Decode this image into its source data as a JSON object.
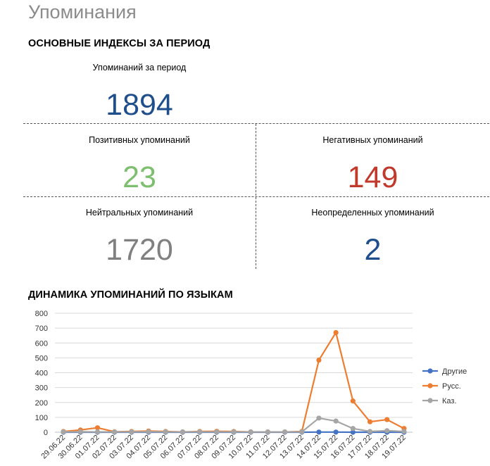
{
  "page": {
    "title": "Упоминания"
  },
  "indices": {
    "heading": "ОСНОВНЫЕ ИНДЕКСЫ ЗА ПЕРИОД",
    "total": {
      "label": "Упоминаний за период",
      "value": "1894",
      "color": "#1f4e8c"
    },
    "positive": {
      "label": "Позитивных упоминаний",
      "value": "23",
      "color": "#7dbf6e"
    },
    "negative": {
      "label": "Негативных упоминаний",
      "value": "149",
      "color": "#c0392b"
    },
    "neutral": {
      "label": "Нейтральных упоминаний",
      "value": "1720",
      "color": "#808080"
    },
    "undefined": {
      "label": "Неопределенных упоминаний",
      "value": "2",
      "color": "#1f4e8c"
    }
  },
  "dynamics": {
    "heading": "ДИНАМИКА УПОМИНАНИЙ ПО ЯЗЫКАМ"
  },
  "chart_data": {
    "type": "line",
    "title": "",
    "xlabel": "",
    "ylabel": "",
    "ylim": [
      0,
      800
    ],
    "yticks": [
      0,
      100,
      200,
      300,
      400,
      500,
      600,
      700,
      800
    ],
    "grid": true,
    "legend_position": "right",
    "categories": [
      "29.06.22",
      "30.06.22",
      "01.07.22",
      "02.07.22",
      "03.07.22",
      "04.07.22",
      "05.07.22",
      "06.07.22",
      "07.07.22",
      "08.07.22",
      "09.07.22",
      "10.07.22",
      "11.07.22",
      "12.07.22",
      "13.07.22",
      "14.07.22",
      "15.07.22",
      "16.07.22",
      "17.07.22",
      "18.07.22",
      "19.07.22"
    ],
    "series": [
      {
        "name": "Другие",
        "color": "#4472c4",
        "values": [
          0,
          0,
          0,
          0,
          0,
          0,
          0,
          0,
          0,
          0,
          0,
          0,
          0,
          0,
          0,
          1,
          1,
          0,
          0,
          0,
          0
        ]
      },
      {
        "name": "Русс.",
        "color": "#ed7d31",
        "values": [
          5,
          15,
          30,
          3,
          5,
          8,
          5,
          2,
          5,
          6,
          5,
          2,
          2,
          2,
          5,
          485,
          670,
          210,
          70,
          85,
          25
        ]
      },
      {
        "name": "Каз.",
        "color": "#a5a5a5",
        "values": [
          2,
          3,
          2,
          2,
          2,
          3,
          2,
          2,
          2,
          2,
          2,
          2,
          2,
          2,
          2,
          95,
          75,
          25,
          5,
          10,
          5
        ]
      }
    ]
  }
}
